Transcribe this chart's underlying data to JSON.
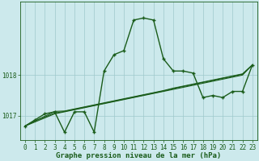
{
  "xlabel": "Graphe pression niveau de la mer (hPa)",
  "background_color": "#cce9ec",
  "grid_color": "#9fc9cc",
  "line_color": "#1a5c1a",
  "x_ticks": [
    0,
    1,
    2,
    3,
    4,
    5,
    6,
    7,
    8,
    9,
    10,
    11,
    12,
    13,
    14,
    15,
    16,
    17,
    18,
    19,
    20,
    21,
    22,
    23
  ],
  "y_ticks": [
    1017,
    1018
  ],
  "ylim": [
    1016.4,
    1019.8
  ],
  "xlim": [
    -0.5,
    23.5
  ],
  "main_y": [
    1016.75,
    1016.9,
    1017.05,
    1017.1,
    1016.6,
    1017.1,
    1017.1,
    1016.6,
    1018.1,
    1018.5,
    1018.6,
    1019.35,
    1019.4,
    1019.35,
    1018.4,
    1018.1,
    1018.1,
    1018.05,
    1017.45,
    1017.5,
    1017.45,
    1017.6,
    1017.6,
    1018.25
  ],
  "trend_lines": [
    [
      1016.75,
      1016.87,
      1016.99,
      1017.11,
      1017.12,
      1017.17,
      1017.22,
      1017.27,
      1017.32,
      1017.37,
      1017.42,
      1017.47,
      1017.52,
      1017.57,
      1017.62,
      1017.68,
      1017.73,
      1017.78,
      1017.83,
      1017.88,
      1017.93,
      1017.98,
      1018.03,
      1018.25
    ],
    [
      1016.75,
      1016.85,
      1016.95,
      1017.05,
      1017.1,
      1017.15,
      1017.2,
      1017.25,
      1017.3,
      1017.35,
      1017.4,
      1017.45,
      1017.5,
      1017.55,
      1017.6,
      1017.65,
      1017.7,
      1017.75,
      1017.8,
      1017.85,
      1017.9,
      1017.95,
      1018.0,
      1018.25
    ],
    [
      1016.75,
      1016.88,
      1016.97,
      1017.07,
      1017.11,
      1017.16,
      1017.21,
      1017.26,
      1017.31,
      1017.36,
      1017.41,
      1017.46,
      1017.51,
      1017.56,
      1017.61,
      1017.67,
      1017.72,
      1017.77,
      1017.82,
      1017.87,
      1017.92,
      1017.97,
      1018.02,
      1018.25
    ]
  ],
  "tick_fontsize": 5.5,
  "xlabel_fontsize": 6.5,
  "linewidth_main": 1.0,
  "linewidth_trend": 0.8,
  "marker_size": 3.5
}
